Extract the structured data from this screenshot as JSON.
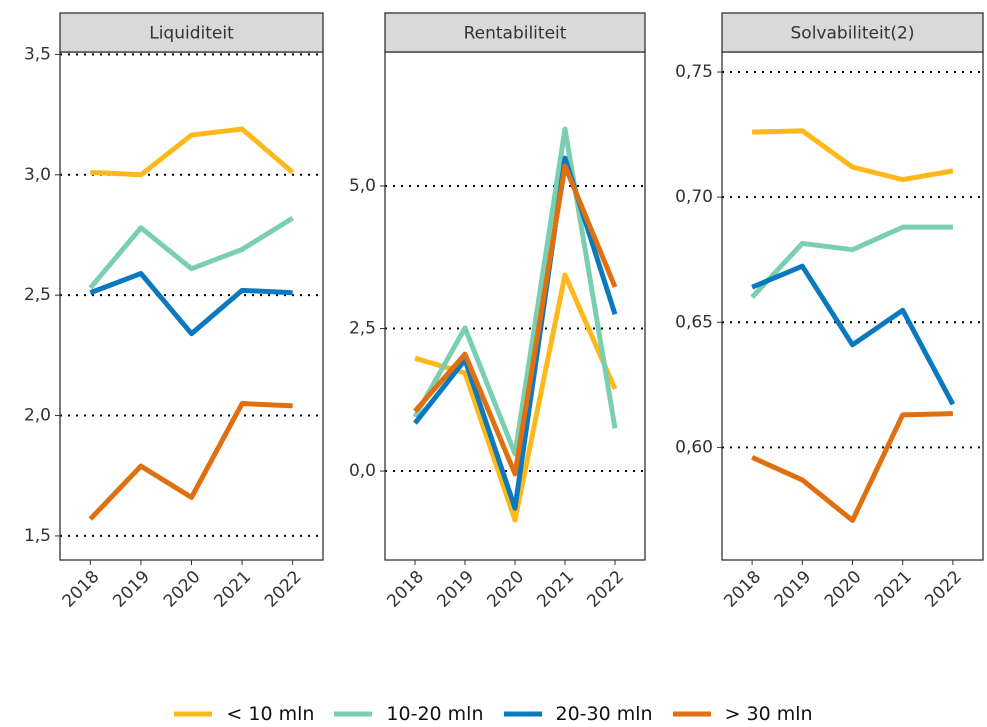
{
  "chart_data": [
    {
      "type": "line",
      "title": "Liquiditeit",
      "categories": [
        "2018",
        "2019",
        "2020",
        "2021",
        "2022"
      ],
      "series": [
        {
          "values": [
            3.01,
            3.0,
            3.165,
            3.19,
            3.01
          ]
        },
        {
          "values": [
            2.53,
            2.78,
            2.61,
            2.69,
            2.82
          ]
        },
        {
          "values": [
            2.51,
            2.59,
            2.34,
            2.52,
            2.51
          ]
        },
        {
          "values": [
            1.57,
            1.79,
            1.66,
            2.05,
            2.04
          ]
        }
      ],
      "ylim": [
        1.4,
        3.51
      ],
      "yticks": [
        {
          "value": 1.5,
          "label": "1,5"
        },
        {
          "value": 2.0,
          "label": "2,0"
        },
        {
          "value": 2.5,
          "label": "2,5"
        },
        {
          "value": 3.0,
          "label": "3,0"
        },
        {
          "value": 3.5,
          "label": "3,5"
        }
      ],
      "grid": "dotted"
    },
    {
      "type": "line",
      "title": "Rentabiliteit",
      "categories": [
        "2018",
        "2019",
        "2020",
        "2021",
        "2022"
      ],
      "series": [
        {
          "values": [
            1.98,
            1.72,
            -0.86,
            3.44,
            1.44
          ]
        },
        {
          "values": [
            0.95,
            2.51,
            0.3,
            6.0,
            0.75
          ]
        },
        {
          "values": [
            0.84,
            1.95,
            -0.65,
            5.49,
            2.75
          ]
        },
        {
          "values": [
            1.05,
            2.05,
            -0.05,
            5.35,
            3.23
          ]
        }
      ],
      "ylim": [
        -1.56,
        7.35
      ],
      "yticks": [
        {
          "value": 0.0,
          "label": "0,0"
        },
        {
          "value": 2.5,
          "label": "2,5"
        },
        {
          "value": 5.0,
          "label": "5,0"
        }
      ],
      "grid": "dotted"
    },
    {
      "type": "line",
      "title": "Solvabiliteit(2)",
      "categories": [
        "2018",
        "2019",
        "2020",
        "2021",
        "2022"
      ],
      "series": [
        {
          "values": [
            0.726,
            0.7265,
            0.712,
            0.707,
            0.7105
          ]
        },
        {
          "values": [
            0.66,
            0.6815,
            0.679,
            0.688,
            0.688
          ]
        },
        {
          "values": [
            0.664,
            0.6724,
            0.641,
            0.6548,
            0.6172
          ]
        },
        {
          "values": [
            0.596,
            0.587,
            0.5708,
            0.613,
            0.6135
          ]
        }
      ],
      "ylim": [
        0.555,
        0.758
      ],
      "yticks": [
        {
          "value": 0.6,
          "label": "0,60"
        },
        {
          "value": 0.65,
          "label": "0,65"
        },
        {
          "value": 0.7,
          "label": "0,70"
        },
        {
          "value": 0.75,
          "label": "0,75"
        }
      ],
      "grid": "dotted"
    }
  ],
  "legend": {
    "position": "bottom",
    "items": [
      {
        "name": "< 10 mln",
        "color": "#ffb81c"
      },
      {
        "name": "10-20 mln",
        "color": "#7acfb0"
      },
      {
        "name": "20-30 mln",
        "color": "#0a79bf"
      },
      {
        "name": "> 30 mln",
        "color": "#e0700f"
      }
    ]
  }
}
